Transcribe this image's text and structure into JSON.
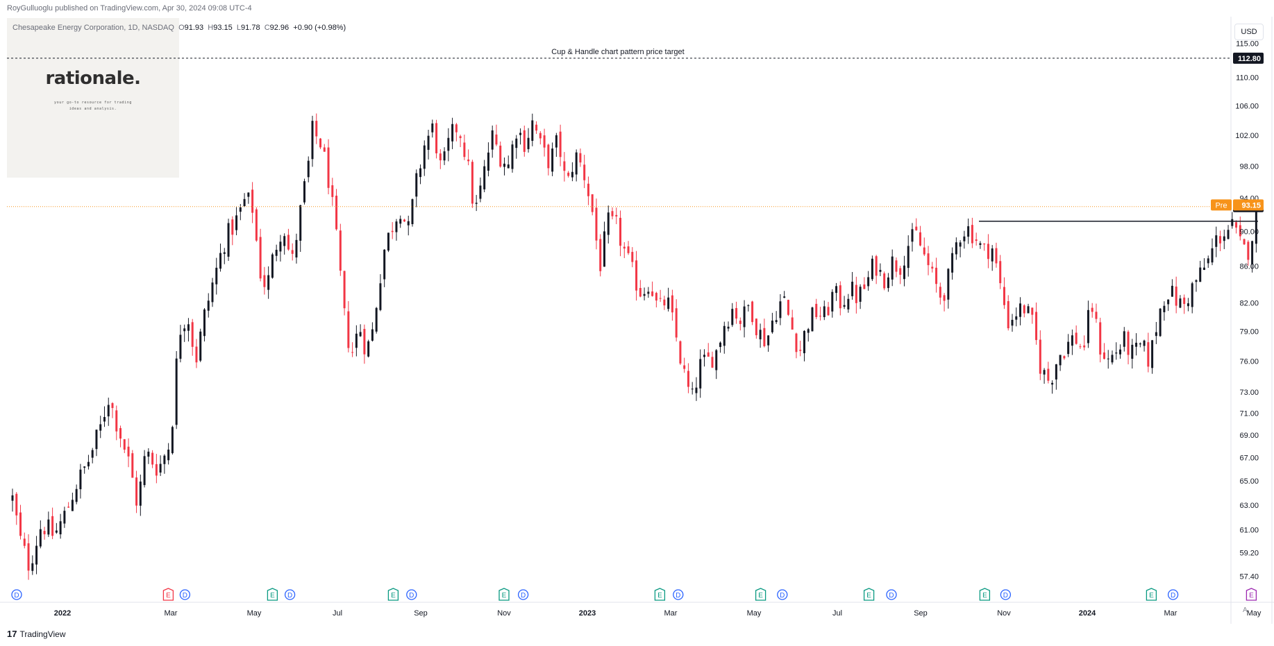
{
  "header": {
    "published": "RoyGulluoglu published on TradingView.com, Apr 30, 2024 09:08 UTC-4",
    "symbol": "Chesapeake Energy Corporation, 1D, NASDAQ",
    "o_label": "O",
    "o_value": "91.93",
    "h_label": "H",
    "h_value": "93.15",
    "l_label": "L",
    "l_value": "91.78",
    "c_label": "C",
    "c_value": "92.96",
    "change": "+0.90 (+0.98%)"
  },
  "logo": {
    "title": "rationale.",
    "tagline1": "your go-to resource for trading",
    "tagline2": "ideas and analysis."
  },
  "currency": "USD",
  "footer": {
    "brand": "TradingView",
    "logo_text": "17"
  },
  "auto_label": "A",
  "colors": {
    "up": "#131722",
    "down": "#f23645",
    "pre": "#f7931a",
    "price_line": "#f7931a"
  },
  "chart_data": {
    "type": "candlestick",
    "title": "Chesapeake Energy Corporation, 1D, NASDAQ",
    "x_ticks": [
      {
        "label": "2022",
        "x": 0.0,
        "bold": true
      },
      {
        "label": "Mar",
        "x": 1.3
      },
      {
        "label": "May",
        "x": 2.3
      },
      {
        "label": "Jul",
        "x": 3.3
      },
      {
        "label": "Sep",
        "x": 4.3
      },
      {
        "label": "Nov",
        "x": 5.3
      },
      {
        "label": "2023",
        "x": 6.3,
        "bold": true
      },
      {
        "label": "Mar",
        "x": 7.3
      },
      {
        "label": "May",
        "x": 8.3
      },
      {
        "label": "Jul",
        "x": 9.3
      },
      {
        "label": "Sep",
        "x": 10.3
      },
      {
        "label": "Nov",
        "x": 11.3
      },
      {
        "label": "2024",
        "x": 12.3,
        "bold": true
      },
      {
        "label": "Mar",
        "x": 13.3
      },
      {
        "label": "May",
        "x": 14.3
      }
    ],
    "y_ticks": [
      "57.40",
      "59.20",
      "61.00",
      "63.00",
      "65.00",
      "67.00",
      "69.00",
      "71.00",
      "73.00",
      "76.00",
      "79.00",
      "82.00",
      "86.00",
      "90.00",
      "94.00",
      "98.00",
      "102.00",
      "106.00",
      "110.00",
      "115.00"
    ],
    "ylim": [
      56.0,
      118.0
    ],
    "yscale": "log",
    "target": {
      "value": 112.8,
      "label": "112.80",
      "text": "Cup & Handle chart pattern price target"
    },
    "last_price": {
      "value": 92.96,
      "label": "92.96"
    },
    "pre_price": {
      "value": 93.15,
      "label": "93.15",
      "tag": "Pre"
    },
    "handle_line": {
      "y": 91.2,
      "x_start": 11.0,
      "x_end": 14.35
    },
    "anchors": [
      {
        "x": -0.6,
        "y": 63.5
      },
      {
        "x": -0.5,
        "y": 60.0
      },
      {
        "x": -0.4,
        "y": 58.2
      },
      {
        "x": -0.25,
        "y": 61.5
      },
      {
        "x": -0.1,
        "y": 60.5
      },
      {
        "x": 0.05,
        "y": 62.5
      },
      {
        "x": 0.15,
        "y": 64.5
      },
      {
        "x": 0.3,
        "y": 66.5
      },
      {
        "x": 0.45,
        "y": 69.5
      },
      {
        "x": 0.55,
        "y": 72.5
      },
      {
        "x": 0.7,
        "y": 69.0
      },
      {
        "x": 0.8,
        "y": 66.5
      },
      {
        "x": 0.9,
        "y": 63.0
      },
      {
        "x": 1.0,
        "y": 67.5
      },
      {
        "x": 1.15,
        "y": 66.0
      },
      {
        "x": 1.3,
        "y": 68.5
      },
      {
        "x": 1.4,
        "y": 79.0
      },
      {
        "x": 1.5,
        "y": 81.0
      },
      {
        "x": 1.6,
        "y": 76.0
      },
      {
        "x": 1.7,
        "y": 80.5
      },
      {
        "x": 1.8,
        "y": 84.0
      },
      {
        "x": 1.95,
        "y": 89.0
      },
      {
        "x": 2.1,
        "y": 91.5
      },
      {
        "x": 2.2,
        "y": 94.0
      },
      {
        "x": 2.3,
        "y": 92.5
      },
      {
        "x": 2.35,
        "y": 86.0
      },
      {
        "x": 2.45,
        "y": 83.5
      },
      {
        "x": 2.55,
        "y": 88.0
      },
      {
        "x": 2.65,
        "y": 91.0
      },
      {
        "x": 2.75,
        "y": 86.0
      },
      {
        "x": 2.85,
        "y": 92.0
      },
      {
        "x": 2.95,
        "y": 98.0
      },
      {
        "x": 3.0,
        "y": 102.5
      },
      {
        "x": 3.1,
        "y": 101.0
      },
      {
        "x": 3.2,
        "y": 96.0
      },
      {
        "x": 3.3,
        "y": 88.0
      },
      {
        "x": 3.4,
        "y": 79.0
      },
      {
        "x": 3.5,
        "y": 76.5
      },
      {
        "x": 3.55,
        "y": 80.0
      },
      {
        "x": 3.65,
        "y": 77.0
      },
      {
        "x": 3.72,
        "y": 79.0
      },
      {
        "x": 3.8,
        "y": 84.0
      },
      {
        "x": 3.85,
        "y": 87.5
      },
      {
        "x": 3.95,
        "y": 90.5
      },
      {
        "x": 4.05,
        "y": 93.0
      },
      {
        "x": 4.15,
        "y": 90.0
      },
      {
        "x": 4.25,
        "y": 96.0
      },
      {
        "x": 4.35,
        "y": 101.0
      },
      {
        "x": 4.45,
        "y": 103.0
      },
      {
        "x": 4.55,
        "y": 97.0
      },
      {
        "x": 4.65,
        "y": 101.5
      },
      {
        "x": 4.75,
        "y": 103.5
      },
      {
        "x": 4.85,
        "y": 99.0
      },
      {
        "x": 4.95,
        "y": 92.0
      },
      {
        "x": 5.05,
        "y": 96.5
      },
      {
        "x": 5.15,
        "y": 102.0
      },
      {
        "x": 5.25,
        "y": 99.5
      },
      {
        "x": 5.35,
        "y": 98.0
      },
      {
        "x": 5.45,
        "y": 103.0
      },
      {
        "x": 5.55,
        "y": 101.0
      },
      {
        "x": 5.65,
        "y": 104.0
      },
      {
        "x": 5.75,
        "y": 100.0
      },
      {
        "x": 5.85,
        "y": 98.5
      },
      {
        "x": 5.95,
        "y": 101.5
      },
      {
        "x": 6.05,
        "y": 95.0
      },
      {
        "x": 6.15,
        "y": 99.5
      },
      {
        "x": 6.25,
        "y": 97.5
      },
      {
        "x": 6.35,
        "y": 93.0
      },
      {
        "x": 6.45,
        "y": 86.0
      },
      {
        "x": 6.55,
        "y": 91.0
      },
      {
        "x": 6.65,
        "y": 90.5
      },
      {
        "x": 6.75,
        "y": 87.5
      },
      {
        "x": 6.85,
        "y": 85.0
      },
      {
        "x": 6.95,
        "y": 83.0
      },
      {
        "x": 7.05,
        "y": 84.5
      },
      {
        "x": 7.15,
        "y": 81.0
      },
      {
        "x": 7.25,
        "y": 82.5
      },
      {
        "x": 7.35,
        "y": 79.0
      },
      {
        "x": 7.45,
        "y": 75.0
      },
      {
        "x": 7.55,
        "y": 72.0
      },
      {
        "x": 7.65,
        "y": 75.5
      },
      {
        "x": 7.75,
        "y": 76.0
      },
      {
        "x": 7.85,
        "y": 77.0
      },
      {
        "x": 7.95,
        "y": 80.0
      },
      {
        "x": 8.05,
        "y": 81.5
      },
      {
        "x": 8.15,
        "y": 80.0
      },
      {
        "x": 8.25,
        "y": 82.0
      },
      {
        "x": 8.35,
        "y": 79.0
      },
      {
        "x": 8.45,
        "y": 78.0
      },
      {
        "x": 8.55,
        "y": 81.0
      },
      {
        "x": 8.65,
        "y": 82.5
      },
      {
        "x": 8.75,
        "y": 79.5
      },
      {
        "x": 8.85,
        "y": 77.0
      },
      {
        "x": 8.95,
        "y": 80.0
      },
      {
        "x": 9.05,
        "y": 81.0
      },
      {
        "x": 9.15,
        "y": 80.5
      },
      {
        "x": 9.25,
        "y": 83.0
      },
      {
        "x": 9.35,
        "y": 82.0
      },
      {
        "x": 9.45,
        "y": 83.5
      },
      {
        "x": 9.55,
        "y": 82.5
      },
      {
        "x": 9.65,
        "y": 84.0
      },
      {
        "x": 9.75,
        "y": 86.5
      },
      {
        "x": 9.85,
        "y": 84.5
      },
      {
        "x": 9.95,
        "y": 86.5
      },
      {
        "x": 10.05,
        "y": 86.0
      },
      {
        "x": 10.15,
        "y": 88.5
      },
      {
        "x": 10.25,
        "y": 89.5
      },
      {
        "x": 10.35,
        "y": 87.0
      },
      {
        "x": 10.45,
        "y": 84.5
      },
      {
        "x": 10.55,
        "y": 82.5
      },
      {
        "x": 10.65,
        "y": 85.0
      },
      {
        "x": 10.75,
        "y": 89.5
      },
      {
        "x": 10.85,
        "y": 90.5
      },
      {
        "x": 10.95,
        "y": 89.5
      },
      {
        "x": 11.05,
        "y": 87.5
      },
      {
        "x": 11.15,
        "y": 88.5
      },
      {
        "x": 11.25,
        "y": 84.0
      },
      {
        "x": 11.35,
        "y": 80.0
      },
      {
        "x": 11.45,
        "y": 81.0
      },
      {
        "x": 11.55,
        "y": 81.5
      },
      {
        "x": 11.65,
        "y": 79.5
      },
      {
        "x": 11.75,
        "y": 75.0
      },
      {
        "x": 11.85,
        "y": 74.0
      },
      {
        "x": 11.95,
        "y": 76.5
      },
      {
        "x": 12.05,
        "y": 77.5
      },
      {
        "x": 12.15,
        "y": 78.5
      },
      {
        "x": 12.25,
        "y": 77.0
      },
      {
        "x": 12.35,
        "y": 82.0
      },
      {
        "x": 12.45,
        "y": 77.5
      },
      {
        "x": 12.55,
        "y": 76.0
      },
      {
        "x": 12.65,
        "y": 77.0
      },
      {
        "x": 12.75,
        "y": 78.0
      },
      {
        "x": 12.85,
        "y": 76.5
      },
      {
        "x": 12.95,
        "y": 77.5
      },
      {
        "x": 13.05,
        "y": 76.0
      },
      {
        "x": 13.15,
        "y": 80.5
      },
      {
        "x": 13.25,
        "y": 83.5
      },
      {
        "x": 13.35,
        "y": 82.5
      },
      {
        "x": 13.45,
        "y": 81.5
      },
      {
        "x": 13.55,
        "y": 83.5
      },
      {
        "x": 13.65,
        "y": 85.0
      },
      {
        "x": 13.75,
        "y": 86.5
      },
      {
        "x": 13.85,
        "y": 89.0
      },
      {
        "x": 13.95,
        "y": 90.0
      },
      {
        "x": 14.05,
        "y": 90.5
      },
      {
        "x": 14.15,
        "y": 88.0
      },
      {
        "x": 14.22,
        "y": 87.5
      },
      {
        "x": 14.3,
        "y": 90.5
      },
      {
        "x": 14.37,
        "y": 92.96
      }
    ],
    "events": [
      {
        "type": "D",
        "x": -0.55,
        "color": "blue"
      },
      {
        "type": "E",
        "x": 1.27,
        "color": "red"
      },
      {
        "type": "D",
        "x": 1.47,
        "color": "blue"
      },
      {
        "type": "E",
        "x": 2.52,
        "color": "green"
      },
      {
        "type": "D",
        "x": 2.73,
        "color": "blue"
      },
      {
        "type": "E",
        "x": 3.97,
        "color": "green"
      },
      {
        "type": "D",
        "x": 4.19,
        "color": "blue"
      },
      {
        "type": "E",
        "x": 5.3,
        "color": "green"
      },
      {
        "type": "D",
        "x": 5.53,
        "color": "blue"
      },
      {
        "type": "E",
        "x": 7.17,
        "color": "green"
      },
      {
        "type": "D",
        "x": 7.39,
        "color": "blue"
      },
      {
        "type": "E",
        "x": 8.38,
        "color": "green"
      },
      {
        "type": "D",
        "x": 8.64,
        "color": "blue"
      },
      {
        "type": "E",
        "x": 9.68,
        "color": "green"
      },
      {
        "type": "D",
        "x": 9.95,
        "color": "blue"
      },
      {
        "type": "E",
        "x": 11.07,
        "color": "green"
      },
      {
        "type": "D",
        "x": 11.32,
        "color": "blue"
      },
      {
        "type": "E",
        "x": 13.07,
        "color": "green"
      },
      {
        "type": "D",
        "x": 13.33,
        "color": "blue"
      },
      {
        "type": "E",
        "x": 14.27,
        "color": "purple"
      }
    ]
  }
}
